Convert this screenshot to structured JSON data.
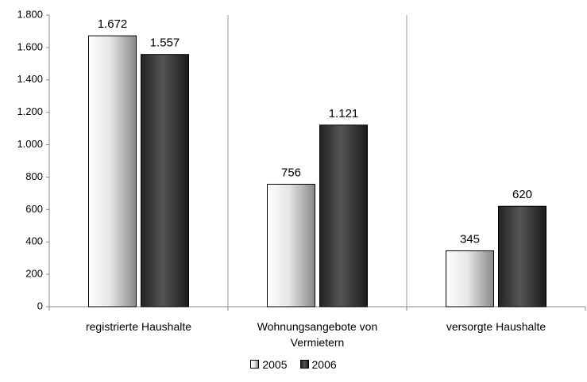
{
  "chart_data": {
    "type": "bar",
    "categories": [
      "registrierte Haushalte",
      "Wohnungsangebote von Vermietern",
      "versorgte Haushalte"
    ],
    "series": [
      {
        "name": "2005",
        "color": "#e6e6e6",
        "values": [
          1672,
          756,
          345
        ],
        "value_labels": [
          "1.672",
          "756",
          "345"
        ]
      },
      {
        "name": "2006",
        "color": "#555555",
        "values": [
          1557,
          1121,
          620
        ],
        "value_labels": [
          "1.557",
          "1.121",
          "620"
        ]
      }
    ],
    "ylim": [
      0,
      1800
    ],
    "yticks": [
      0,
      {
        "value": 200,
        "label": "200"
      },
      400,
      600,
      800,
      {
        "value": 1000,
        "label": "1.000"
      },
      {
        "value": 1200,
        "label": "1.200"
      },
      {
        "value": 1400,
        "label": "1.400"
      },
      {
        "value": 1600,
        "label": "1.600"
      },
      {
        "value": 1800,
        "label": "1.800"
      }
    ],
    "category_separators": true,
    "legend": "bottom"
  }
}
